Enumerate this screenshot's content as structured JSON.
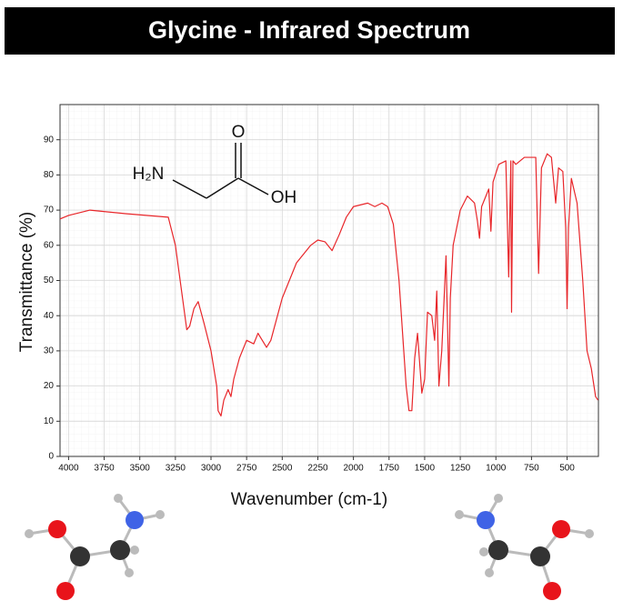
{
  "chart_data": {
    "type": "line",
    "title": "Glycine - Infrared Spectrum",
    "x_label": "Wavenumber (cm-1)",
    "y_label": "Transmittance (%)",
    "annotations": [
      "H₂N",
      "O",
      "OH"
    ],
    "x": [
      4060,
      4000,
      3850,
      3600,
      3300,
      3250,
      3200,
      3170,
      3150,
      3120,
      3090,
      3050,
      3000,
      2960,
      2950,
      2930,
      2910,
      2880,
      2860,
      2840,
      2800,
      2750,
      2700,
      2670,
      2640,
      2610,
      2580,
      2500,
      2400,
      2300,
      2250,
      2200,
      2150,
      2100,
      2050,
      2000,
      1900,
      1850,
      1800,
      1760,
      1720,
      1680,
      1630,
      1610,
      1590,
      1570,
      1550,
      1520,
      1500,
      1480,
      1450,
      1430,
      1415,
      1400,
      1380,
      1350,
      1330,
      1320,
      1300,
      1250,
      1200,
      1150,
      1130,
      1115,
      1100,
      1050,
      1035,
      1020,
      980,
      930,
      910,
      895,
      890,
      880,
      860,
      800,
      720,
      700,
      680,
      640,
      610,
      580,
      560,
      530,
      510,
      500,
      490,
      470,
      430,
      390,
      360,
      330,
      300,
      283
    ],
    "values": [
      67.5,
      68.5,
      70,
      69,
      68,
      60,
      45,
      36,
      37,
      42,
      44,
      38,
      30,
      20,
      13,
      11.5,
      16,
      19,
      17,
      22,
      28,
      33,
      32,
      35,
      33,
      31,
      33,
      45,
      55,
      60,
      61.5,
      61,
      58.5,
      63,
      68,
      71,
      72,
      71,
      72,
      71,
      66,
      50,
      20,
      13,
      13,
      28,
      35,
      18,
      22,
      41,
      40,
      33,
      47,
      20,
      30,
      57,
      20,
      45,
      60,
      70,
      74,
      72,
      67,
      62,
      71,
      76,
      64,
      78,
      83,
      84,
      51,
      84,
      41,
      84,
      83,
      85,
      85,
      52,
      82,
      86,
      85,
      72,
      82,
      81,
      65,
      42,
      65,
      79,
      72,
      50,
      30,
      25,
      17,
      16
    ],
    "color": "#e8262a",
    "xlim": [
      4060,
      280
    ],
    "ylim": [
      0,
      100
    ],
    "xticks": [
      4000,
      3750,
      3500,
      3250,
      3000,
      2750,
      2500,
      2250,
      2000,
      1750,
      1500,
      1250,
      1000,
      750,
      500
    ],
    "yticks": [
      0,
      10,
      20,
      30,
      40,
      50,
      60,
      70,
      80,
      90
    ],
    "grid": true
  }
}
